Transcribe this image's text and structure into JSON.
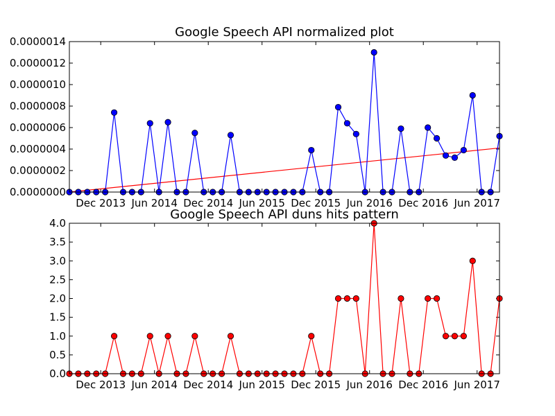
{
  "chart_data": [
    {
      "type": "line",
      "title": "Google Speech API normalized plot",
      "xlabel": "",
      "ylabel": "",
      "ylim": [
        0,
        1.4e-06
      ],
      "yticks": [
        "0.0000000",
        "0.0000002",
        "0.0000004",
        "0.0000006",
        "0.0000008",
        "0.0000010",
        "0.0000012",
        "0.0000014"
      ],
      "xticks": [
        "Dec 2013",
        "Jun 2014",
        "Dec 2014",
        "Jun 2015",
        "Dec 2015",
        "Jun 2016",
        "Dec 2016",
        "Jun 2017"
      ],
      "grid": false,
      "colors": {
        "series": "#0000ff",
        "trend": "#ff0000"
      },
      "series": [
        {
          "values": [
            0,
            0,
            0,
            0,
            0,
            7.4e-07,
            0,
            0,
            0,
            6.4e-07,
            0,
            6.5e-07,
            0,
            0,
            5.5e-07,
            0,
            0,
            0,
            5.3e-07,
            0,
            0,
            0,
            0,
            0,
            0,
            0,
            0,
            3.9e-07,
            0,
            0,
            7.9e-07,
            6.4e-07,
            5.4e-07,
            0,
            1.3e-06,
            0,
            0,
            5.9e-07,
            0,
            0,
            6e-07,
            5e-07,
            3.4e-07,
            3.2e-07,
            3.9e-07,
            9e-07,
            0,
            0,
            5.2e-07
          ]
        }
      ],
      "trend_line": [
        0,
        4.1e-07
      ]
    },
    {
      "type": "line",
      "title": "Google Speech API duns hits pattern",
      "xlabel": "",
      "ylabel": "",
      "ylim": [
        0,
        4.0
      ],
      "yticks": [
        "0.0",
        "0.5",
        "1.0",
        "1.5",
        "2.0",
        "2.5",
        "3.0",
        "3.5",
        "4.0"
      ],
      "xticks": [
        "Dec 2013",
        "Jun 2014",
        "Dec 2014",
        "Jun 2015",
        "Dec 2015",
        "Jun 2016",
        "Dec 2016",
        "Jun 2017"
      ],
      "grid": false,
      "colors": {
        "series": "#ff0000"
      },
      "series": [
        {
          "values": [
            0,
            0,
            0,
            0,
            0,
            1,
            0,
            0,
            0,
            1,
            0,
            1,
            0,
            0,
            1,
            0,
            0,
            0,
            1,
            0,
            0,
            0,
            0,
            0,
            0,
            0,
            0,
            1,
            0,
            0,
            2,
            2,
            2,
            0,
            4,
            0,
            0,
            2,
            0,
            0,
            2,
            2,
            1,
            1,
            1,
            3,
            0,
            0,
            2
          ]
        }
      ]
    }
  ]
}
